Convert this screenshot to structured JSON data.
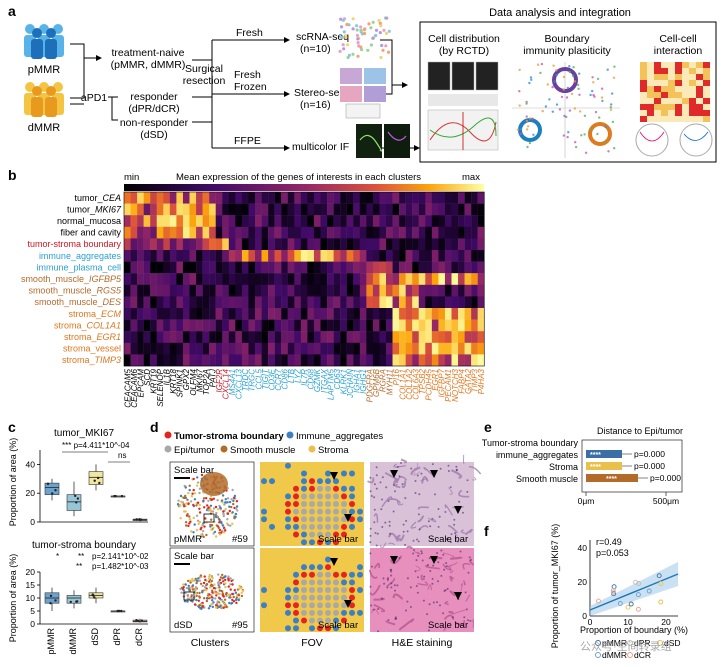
{
  "panel_a": {
    "label": "a",
    "groups": [
      "pMMR",
      "dMMR"
    ],
    "arm_top": [
      "treatment-naive",
      "(pMMR, dMMR)"
    ],
    "apd1": "aPD1",
    "arm_resp": [
      "responder",
      "(dPR/dCR)"
    ],
    "arm_nonresp": [
      "non-responder",
      "(dSD)"
    ],
    "surgical": [
      "Surgical",
      "resection"
    ],
    "fresh": "Fresh",
    "fresh_frozen": [
      "Fresh",
      "Frozen"
    ],
    "ffpe": "FFPE",
    "sc_seq": [
      "scRNA-seq",
      "(n=10)"
    ],
    "stereo_seq": [
      "Stereo-seq",
      "(n=16)"
    ],
    "multicolor": "multicolor IF",
    "integration_title": "Data analysis and integration",
    "box1": [
      "Cell distribution",
      "(by RCTD)"
    ],
    "box2": [
      "Boundary",
      "immunity plasiticity"
    ],
    "box3": [
      "Cell-cell",
      "interaction"
    ]
  },
  "panel_b": {
    "label": "b",
    "min": "min",
    "max": "max",
    "legend_title": "Mean expression of the genes of interests in each clusters",
    "rows": [
      {
        "prefix": "tumor_",
        "gene": "CEA",
        "color": "#000000"
      },
      {
        "prefix": "tumor_",
        "gene": "MKI67",
        "color": "#000000"
      },
      {
        "prefix": "normal_mucosa",
        "gene": "",
        "color": "#000000"
      },
      {
        "prefix": "fiber and cavity",
        "gene": "",
        "color": "#000000"
      },
      {
        "prefix": "tumor-stroma boundary",
        "gene": "",
        "color": "#d2141e"
      },
      {
        "prefix": "immune_aggregates",
        "gene": "",
        "color": "#2aa1d3"
      },
      {
        "prefix": "immune_plasma_cell",
        "gene": "",
        "color": "#2aa1d3"
      },
      {
        "prefix": "smooth_muscle_",
        "gene": "IGFBP5",
        "color": "#b56a2b"
      },
      {
        "prefix": "smooth_muscle_",
        "gene": "RGS5",
        "color": "#b56a2b"
      },
      {
        "prefix": "smooth_muscle_",
        "gene": "DES",
        "color": "#b56a2b"
      },
      {
        "prefix": "stroma_",
        "gene": "ECM",
        "color": "#e0761e"
      },
      {
        "prefix": "stroma_",
        "gene": "COL1A1",
        "color": "#e0761e"
      },
      {
        "prefix": "stroma_",
        "gene": "EGR1",
        "color": "#e0761e"
      },
      {
        "prefix": "stroma_vessel",
        "gene": "",
        "color": "#e0761e"
      },
      {
        "prefix": "stroma_",
        "gene": "TIMP3",
        "color": "#e0761e"
      }
    ],
    "genes": [
      {
        "name": "CEACAM5",
        "color": "#000000"
      },
      {
        "name": "CEACAM6",
        "color": "#000000"
      },
      {
        "name": "EPCAM",
        "color": "#000000"
      },
      {
        "name": "SCD",
        "color": "#000000"
      },
      {
        "name": "KRT19",
        "color": "#000000"
      },
      {
        "name": "SELENOP",
        "color": "#000000"
      },
      {
        "name": "IL1B",
        "color": "#000000"
      },
      {
        "name": "KRT18",
        "color": "#000000"
      },
      {
        "name": "SPINK1",
        "color": "#000000"
      },
      {
        "name": "GPX2",
        "color": "#000000"
      },
      {
        "name": "OLFM4",
        "color": "#000000"
      },
      {
        "name": "MKI67",
        "color": "#000000"
      },
      {
        "name": "TOP2A",
        "color": "#000000"
      },
      {
        "name": "PATJ",
        "color": "#000000"
      },
      {
        "name": "IGF2R",
        "color": "#d2141e"
      },
      {
        "name": "CXCL14",
        "color": "#d2141e"
      },
      {
        "name": "MS4A1",
        "color": "#2aa1d3"
      },
      {
        "name": "CXCL13",
        "color": "#2aa1d3"
      },
      {
        "name": "TRDC",
        "color": "#2aa1d3"
      },
      {
        "name": "TRGC",
        "color": "#2aa1d3"
      },
      {
        "name": "CCL5",
        "color": "#2aa1d3"
      },
      {
        "name": "TIGIT",
        "color": "#2aa1d3"
      },
      {
        "name": "CD3E",
        "color": "#2aa1d3"
      },
      {
        "name": "CCR7",
        "color": "#2aa1d3"
      },
      {
        "name": "CD86",
        "color": "#2aa1d3"
      },
      {
        "name": "LTB",
        "color": "#2aa1d3"
      },
      {
        "name": "LYZ",
        "color": "#2aa1d3"
      },
      {
        "name": "IL7R",
        "color": "#2aa1d3"
      },
      {
        "name": "CD68",
        "color": "#2aa1d3"
      },
      {
        "name": "GZMK",
        "color": "#2aa1d3"
      },
      {
        "name": "ITGAX",
        "color": "#2aa1d3"
      },
      {
        "name": "LAPTM5",
        "color": "#2aa1d3"
      },
      {
        "name": "CD63",
        "color": "#2aa1d3"
      },
      {
        "name": "KLRK1",
        "color": "#2aa1d3"
      },
      {
        "name": "JCHAIN",
        "color": "#2aa1d3"
      },
      {
        "name": "IGHA1",
        "color": "#2aa1d3"
      },
      {
        "name": "IGHG1",
        "color": "#2aa1d3"
      },
      {
        "name": "PDGFRA",
        "color": "#b56a2b"
      },
      {
        "name": "GPM6B",
        "color": "#b56a2b"
      },
      {
        "name": "RGRA",
        "color": "#b56a2b"
      },
      {
        "name": "MYH11",
        "color": "#b56a2b"
      },
      {
        "name": "PI16",
        "color": "#e0761e"
      },
      {
        "name": "COL1A1",
        "color": "#e0761e"
      },
      {
        "name": "COL1A2",
        "color": "#e0761e"
      },
      {
        "name": "COL6A3",
        "color": "#e0761e"
      },
      {
        "name": "TPSB2",
        "color": "#e0761e"
      },
      {
        "name": "PCDH45",
        "color": "#e0761e"
      },
      {
        "name": "EGR1",
        "color": "#e0761e"
      },
      {
        "name": "IGFBP7",
        "color": "#e0761e"
      },
      {
        "name": "PECAM1",
        "color": "#e0761e"
      },
      {
        "name": "NOTCH3",
        "color": "#e0761e"
      },
      {
        "name": "FABP4",
        "color": "#e0761e"
      },
      {
        "name": "GATA2",
        "color": "#e0761e"
      },
      {
        "name": "TIMP3",
        "color": "#e0761e"
      },
      {
        "name": "P4HA3",
        "color": "#e0761e"
      }
    ]
  },
  "panel_c": {
    "label": "c",
    "top_title": "tumor_MKI67",
    "bottom_title": "tumor-stroma boundary",
    "ylabel": "Proportion of area (%)",
    "groups": [
      "pMMR",
      "dMMR",
      "dSD",
      "dPR",
      "dCR"
    ],
    "group_colors": [
      "#6aa3cf",
      "#97c7d6",
      "#f2e7a0",
      "#bdbdbd",
      "#f0a088"
    ],
    "top_ticks": [
      "0",
      "20",
      "40"
    ],
    "bottom_ticks": [
      "0",
      "5",
      "10",
      "15",
      "20"
    ],
    "top_stats": [
      "*** p=4.411*10^-04",
      "ns"
    ],
    "bottom_stats": [
      "p=2.141*10^-02",
      "p=1.482*10^-03"
    ],
    "bottom_marks": [
      "*",
      "**",
      "**"
    ]
  },
  "panel_d": {
    "label": "d",
    "legend": [
      {
        "name": "Tumor-stroma boundary",
        "color": "#e5231f"
      },
      {
        "name": "Immune_aggregates",
        "color": "#3b7fc4"
      },
      {
        "name": "Epi/tumor",
        "color": "#a8a8a8"
      },
      {
        "name": "Smooth muscle",
        "color": "#b36b2a"
      },
      {
        "name": "Stroma",
        "color": "#e9c14a"
      }
    ],
    "scale_bar": "Scale bar",
    "samples": [
      {
        "group": "pMMR",
        "id": "#59"
      },
      {
        "group": "dSD",
        "id": "#95"
      }
    ],
    "col_labels": [
      "Clusters",
      "FOV",
      "H&E staining"
    ]
  },
  "panel_e": {
    "label": "e",
    "title": "Distance to Epi/tumor",
    "categories": [
      "Tumor-stroma boundary",
      "immune_aggregates",
      "Stroma",
      "Smooth muscle"
    ],
    "marks": [
      "****",
      "****",
      "****"
    ],
    "pvals": [
      "p=0.000",
      "p=0.000",
      "p=0.000"
    ],
    "colors": [
      "#3b6ea5",
      "#e9c14a",
      "#b36b2a"
    ],
    "xticks": [
      "0μm",
      "500μm"
    ]
  },
  "panel_f": {
    "label": "f",
    "r": "r=0.49",
    "p": "p=0.053",
    "ylabel": "Proportion of tumor_MKI67 (%)",
    "xlabel": "Proportion of boundary (%)",
    "xticks": [
      "0",
      "10",
      "20"
    ],
    "yticks": [
      "0",
      "20",
      "40"
    ],
    "legend": [
      {
        "name": "pMMR",
        "color": "#3b6ea5"
      },
      {
        "name": "dPR",
        "color": "#bdbdbd"
      },
      {
        "name": "dSD",
        "color": "#e9c14a"
      },
      {
        "name": "dMMR",
        "color": "#6aa3cf"
      },
      {
        "name": "dCR",
        "color": "#f0a088"
      }
    ]
  },
  "watermark": "公众号·空间转录组"
}
